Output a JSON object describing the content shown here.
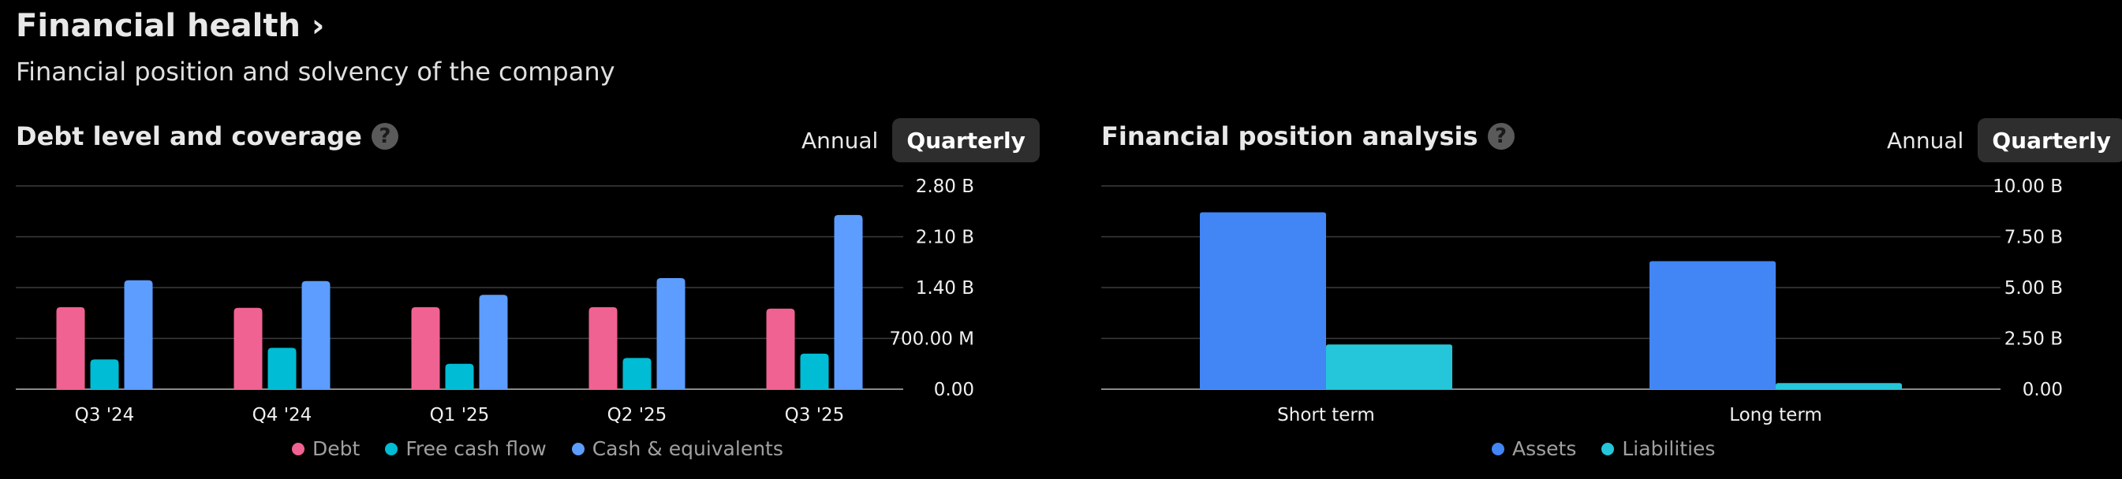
{
  "header": {
    "title": "Financial health ›",
    "subtitle": "Financial position and solvency of the company"
  },
  "panels": [
    {
      "title": "Debt level and coverage",
      "help_icon": "help-icon",
      "toggle": {
        "annual": "Annual",
        "quarterly": "Quarterly",
        "selected": "Quarterly"
      }
    },
    {
      "title": "Financial position analysis",
      "help_icon": "help-icon",
      "toggle": {
        "annual": "Annual",
        "quarterly": "Quarterly",
        "selected": "Quarterly"
      }
    }
  ],
  "chart_data": [
    {
      "type": "bar",
      "categories": [
        "Q3 '24",
        "Q4 '24",
        "Q1 '25",
        "Q2 '25",
        "Q3 '25"
      ],
      "series": [
        {
          "name": "Debt",
          "color": "#f06292",
          "values": [
            1.13,
            1.12,
            1.13,
            1.13,
            1.11
          ]
        },
        {
          "name": "Free cash flow",
          "color": "#00bcd4",
          "values": [
            0.41,
            0.57,
            0.35,
            0.43,
            0.49
          ]
        },
        {
          "name": "Cash & equivalents",
          "color": "#5c9dff",
          "values": [
            1.5,
            1.49,
            1.3,
            1.53,
            2.4
          ]
        }
      ],
      "yticks": [
        "0.00",
        "700.00 M",
        "1.40 B",
        "2.10 B",
        "2.80 B"
      ],
      "ylim": [
        0,
        2.8
      ],
      "unit": "B",
      "grid": true,
      "legend_position": "bottom"
    },
    {
      "type": "bar",
      "categories": [
        "Short term",
        "Long term"
      ],
      "series": [
        {
          "name": "Assets",
          "color": "#4285f4",
          "values": [
            8.7,
            6.3
          ]
        },
        {
          "name": "Liabilities",
          "color": "#26c6da",
          "values": [
            2.2,
            0.3
          ]
        }
      ],
      "yticks": [
        "0.00",
        "2.50 B",
        "5.00 B",
        "7.50 B",
        "10.00 B"
      ],
      "ylim": [
        0,
        10
      ],
      "unit": "B",
      "grid": true,
      "legend_position": "bottom"
    }
  ]
}
